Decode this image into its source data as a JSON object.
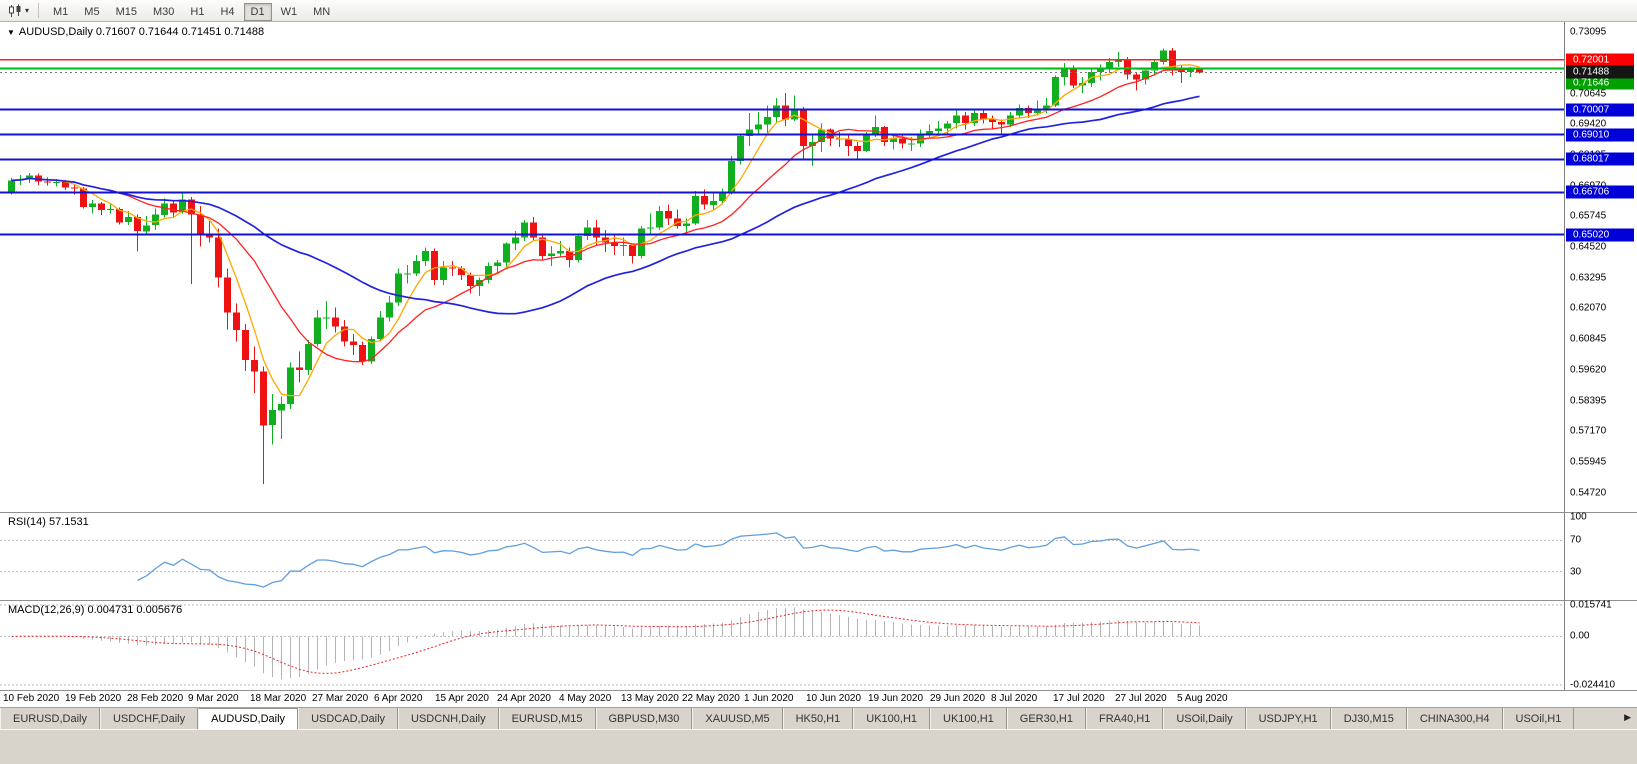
{
  "icons": {
    "caret_down": "▾",
    "one_click": "▼",
    "tab_scroll_right": "▶",
    "chart_type": "candlestick-chart"
  },
  "toolbar": {
    "timeframes": [
      "M1",
      "M5",
      "M15",
      "M30",
      "H1",
      "H4",
      "D1",
      "W1",
      "MN"
    ],
    "active_timeframe": "D1"
  },
  "chart_data": {
    "type": "candlestick",
    "symbol": "AUDUSD",
    "period": "Daily",
    "ohlc_title": "AUDUSD,Daily 0.71607 0.71644 0.71451 0.71488",
    "open": "0.71607",
    "high": "0.71644",
    "low": "0.71451",
    "close": "0.71488",
    "ylim": [
      0.5395,
      0.735
    ],
    "colors": {
      "bull": "#0faf20",
      "bear": "#ef1212",
      "background": "#ffffff"
    },
    "moving_averages": [
      {
        "name": "fast-ma",
        "period": 5,
        "color": "#ffa800",
        "width": 1.3
      },
      {
        "name": "medium-ma",
        "period": 13,
        "color": "#ff2222",
        "width": 1.3
      },
      {
        "name": "slow-ma",
        "period": 34,
        "color": "#2222dd",
        "width": 1.7
      }
    ],
    "levels": [
      {
        "price": 0.72001,
        "label": "0.72001",
        "color": "#ff2020",
        "width": 1.5,
        "label_bg": "#ff0000"
      },
      {
        "price": 0.71646,
        "label": "0.71646",
        "color": "#00b818",
        "width": 2,
        "label_bg": "#00a000",
        "label_dy": 15
      },
      {
        "price": 0.70007,
        "label": "0.70007",
        "color": "#1212d0",
        "width": 2,
        "label_bg": "#0000d8"
      },
      {
        "price": 0.6901,
        "label": "0.69010",
        "color": "#1212d0",
        "width": 2,
        "label_bg": "#0000d8"
      },
      {
        "price": 0.68017,
        "label": "0.68017",
        "color": "#1212d0",
        "width": 2,
        "label_bg": "#0000d8"
      },
      {
        "price": 0.66706,
        "label": "0.66706",
        "color": "#1212d0",
        "width": 2,
        "label_bg": "#0000d8"
      },
      {
        "price": 0.6502,
        "label": "0.65020",
        "color": "#1212d0",
        "width": 2,
        "label_bg": "#0000d8"
      }
    ],
    "current_price": {
      "price": 0.71488,
      "value": "0.71488",
      "label_bg": "#151515",
      "line_color": "#777777"
    },
    "price_axis_ticks": [
      "0.73095",
      "0.71870",
      "0.70645",
      "0.69420",
      "0.68195",
      "0.66970",
      "0.65745",
      "0.64520",
      "0.63295",
      "0.62070",
      "0.60845",
      "0.59620",
      "0.58395",
      "0.57170",
      "0.55945",
      "0.54720"
    ],
    "date_labels": [
      "10 Feb 2020",
      "19 Feb 2020",
      "28 Feb 2020",
      "9 Mar 2020",
      "18 Mar 2020",
      "27 Mar 2020",
      "6 Apr 2020",
      "15 Apr 2020",
      "24 Apr 2020",
      "4 May 2020",
      "13 May 2020",
      "22 May 2020",
      "1 Jun 2020",
      "10 Jun 2020",
      "19 Jun 2020",
      "29 Jun 2020",
      "8 Jul 2020",
      "17 Jul 2020",
      "27 Jul 2020",
      "5 Aug 2020"
    ],
    "rsi": {
      "label": "RSI(14) 57.1531",
      "period": 14,
      "current": "57.1531",
      "line_color": "#5f9fdf",
      "levels": [
        {
          "value": 100,
          "label": "100",
          "dashed": false
        },
        {
          "value": 70,
          "label": "70",
          "dashed": true
        },
        {
          "value": 30,
          "label": "30",
          "dashed": true
        }
      ]
    },
    "macd": {
      "label": "MACD(12,26,9) 0.004731 0.005676",
      "fast": 12,
      "slow": 26,
      "signal": 9,
      "macd_current": "0.004731",
      "signal_current": "0.005676",
      "scale_max": 0.015741,
      "scale_min": -0.02441,
      "histogram_color": "#b4b4b4",
      "signal_color": "#ee2222",
      "axis": [
        {
          "value": 0.015741,
          "label": "0.015741"
        },
        {
          "value": 0,
          "label": "0.00"
        },
        {
          "value": -0.02441,
          "label": "-0.024410"
        }
      ]
    },
    "ohlc": [
      [
        0.6672,
        0.6727,
        0.6662,
        0.6718
      ],
      [
        0.6718,
        0.674,
        0.67,
        0.6722
      ],
      [
        0.6722,
        0.6748,
        0.6708,
        0.6738
      ],
      [
        0.6738,
        0.6746,
        0.67,
        0.6714
      ],
      [
        0.6714,
        0.673,
        0.6698,
        0.671
      ],
      [
        0.671,
        0.6724,
        0.6694,
        0.6712
      ],
      [
        0.6712,
        0.672,
        0.668,
        0.669
      ],
      [
        0.669,
        0.6702,
        0.6662,
        0.6686
      ],
      [
        0.6686,
        0.6691,
        0.6605,
        0.6612
      ],
      [
        0.6612,
        0.664,
        0.6585,
        0.6626
      ],
      [
        0.6626,
        0.6632,
        0.658,
        0.66
      ],
      [
        0.66,
        0.6626,
        0.6585,
        0.6604
      ],
      [
        0.6604,
        0.661,
        0.6542,
        0.6551
      ],
      [
        0.6551,
        0.6596,
        0.654,
        0.6571
      ],
      [
        0.6571,
        0.6582,
        0.6434,
        0.6515
      ],
      [
        0.6515,
        0.6576,
        0.6505,
        0.6539
      ],
      [
        0.6539,
        0.6606,
        0.652,
        0.6581
      ],
      [
        0.6581,
        0.6646,
        0.657,
        0.6626
      ],
      [
        0.6626,
        0.6636,
        0.657,
        0.6591
      ],
      [
        0.6591,
        0.667,
        0.6586,
        0.6641
      ],
      [
        0.6641,
        0.6651,
        0.6305,
        0.6581
      ],
      [
        0.6581,
        0.6616,
        0.6455,
        0.6501
      ],
      [
        0.6501,
        0.6556,
        0.647,
        0.6491
      ],
      [
        0.6491,
        0.6526,
        0.629,
        0.6331
      ],
      [
        0.6331,
        0.6366,
        0.6124,
        0.6191
      ],
      [
        0.6191,
        0.6226,
        0.6076,
        0.6121
      ],
      [
        0.6121,
        0.6146,
        0.5958,
        0.6001
      ],
      [
        0.6001,
        0.6056,
        0.587,
        0.5956
      ],
      [
        0.5956,
        0.5976,
        0.5506,
        0.5741
      ],
      [
        0.5741,
        0.5866,
        0.5664,
        0.5801
      ],
      [
        0.5801,
        0.5856,
        0.5686,
        0.5826
      ],
      [
        0.5826,
        0.5991,
        0.5806,
        0.5971
      ],
      [
        0.5971,
        0.6036,
        0.5911,
        0.5961
      ],
      [
        0.5961,
        0.6081,
        0.5941,
        0.6066
      ],
      [
        0.6066,
        0.6201,
        0.6056,
        0.6171
      ],
      [
        0.6171,
        0.6236,
        0.6126,
        0.6171
      ],
      [
        0.6171,
        0.6211,
        0.6111,
        0.6136
      ],
      [
        0.6136,
        0.6161,
        0.6056,
        0.6076
      ],
      [
        0.6076,
        0.6106,
        0.6021,
        0.6061
      ],
      [
        0.6061,
        0.6076,
        0.5981,
        0.5996
      ],
      [
        0.5996,
        0.6096,
        0.5986,
        0.6086
      ],
      [
        0.6086,
        0.6196,
        0.6076,
        0.6171
      ],
      [
        0.6171,
        0.6256,
        0.6156,
        0.6231
      ],
      [
        0.6231,
        0.6366,
        0.6216,
        0.6346
      ],
      [
        0.6346,
        0.6381,
        0.6306,
        0.6346
      ],
      [
        0.6346,
        0.6421,
        0.6336,
        0.6396
      ],
      [
        0.6396,
        0.6451,
        0.6376,
        0.6436
      ],
      [
        0.6436,
        0.6446,
        0.6301,
        0.6321
      ],
      [
        0.6321,
        0.6396,
        0.6301,
        0.6371
      ],
      [
        0.6371,
        0.6396,
        0.6336,
        0.6366
      ],
      [
        0.6366,
        0.6376,
        0.6321,
        0.6341
      ],
      [
        0.6341,
        0.6351,
        0.6266,
        0.6296
      ],
      [
        0.6296,
        0.6331,
        0.6256,
        0.6321
      ],
      [
        0.6321,
        0.6391,
        0.6306,
        0.6376
      ],
      [
        0.6376,
        0.6401,
        0.6351,
        0.6391
      ],
      [
        0.6391,
        0.6471,
        0.6371,
        0.6466
      ],
      [
        0.6466,
        0.6516,
        0.6441,
        0.6491
      ],
      [
        0.6491,
        0.6561,
        0.6476,
        0.6551
      ],
      [
        0.6551,
        0.6571,
        0.6476,
        0.6491
      ],
      [
        0.6491,
        0.6506,
        0.6401,
        0.6416
      ],
      [
        0.6416,
        0.6456,
        0.6376,
        0.6426
      ],
      [
        0.6426,
        0.6476,
        0.6411,
        0.6436
      ],
      [
        0.6436,
        0.6451,
        0.6371,
        0.6401
      ],
      [
        0.6401,
        0.6501,
        0.6391,
        0.6496
      ],
      [
        0.6496,
        0.6561,
        0.6481,
        0.6531
      ],
      [
        0.6531,
        0.6561,
        0.6461,
        0.6491
      ],
      [
        0.6491,
        0.6521,
        0.6432,
        0.6471
      ],
      [
        0.6471,
        0.6506,
        0.6421,
        0.6456
      ],
      [
        0.6456,
        0.6491,
        0.6416,
        0.6461
      ],
      [
        0.6461,
        0.6466,
        0.6386,
        0.6416
      ],
      [
        0.6416,
        0.6536,
        0.6406,
        0.6526
      ],
      [
        0.6526,
        0.6586,
        0.6506,
        0.6531
      ],
      [
        0.6531,
        0.6616,
        0.6521,
        0.6596
      ],
      [
        0.6596,
        0.6621,
        0.6541,
        0.6566
      ],
      [
        0.6566,
        0.6601,
        0.6526,
        0.6536
      ],
      [
        0.6536,
        0.6566,
        0.6506,
        0.6546
      ],
      [
        0.6546,
        0.6676,
        0.6541,
        0.6656
      ],
      [
        0.6656,
        0.6681,
        0.6601,
        0.6621
      ],
      [
        0.6621,
        0.6666,
        0.6601,
        0.6636
      ],
      [
        0.6636,
        0.6686,
        0.6621,
        0.6666
      ],
      [
        0.6666,
        0.6816,
        0.6661,
        0.6796
      ],
      [
        0.6796,
        0.6901,
        0.6781,
        0.6896
      ],
      [
        0.6896,
        0.6986,
        0.6856,
        0.6921
      ],
      [
        0.6921,
        0.6991,
        0.6906,
        0.6941
      ],
      [
        0.6941,
        0.7016,
        0.6901,
        0.6971
      ],
      [
        0.6971,
        0.7046,
        0.6946,
        0.7016
      ],
      [
        0.7016,
        0.7066,
        0.6936,
        0.6961
      ],
      [
        0.6961,
        0.7056,
        0.6956,
        0.7001
      ],
      [
        0.7001,
        0.7011,
        0.6801,
        0.6856
      ],
      [
        0.6856,
        0.6906,
        0.6776,
        0.6871
      ],
      [
        0.6871,
        0.6946,
        0.6831,
        0.6921
      ],
      [
        0.6921,
        0.6926,
        0.6856,
        0.6886
      ],
      [
        0.6886,
        0.6911,
        0.6851,
        0.6881
      ],
      [
        0.6881,
        0.6906,
        0.6816,
        0.6856
      ],
      [
        0.6856,
        0.6871,
        0.6806,
        0.6836
      ],
      [
        0.6836,
        0.6911,
        0.6831,
        0.6906
      ],
      [
        0.6906,
        0.6976,
        0.6891,
        0.6931
      ],
      [
        0.6931,
        0.6936,
        0.6856,
        0.6871
      ],
      [
        0.6871,
        0.6906,
        0.6841,
        0.6886
      ],
      [
        0.6886,
        0.6901,
        0.6846,
        0.6866
      ],
      [
        0.6866,
        0.6891,
        0.6836,
        0.6866
      ],
      [
        0.6866,
        0.6921,
        0.6851,
        0.6906
      ],
      [
        0.6906,
        0.6941,
        0.6891,
        0.6916
      ],
      [
        0.6916,
        0.6956,
        0.6901,
        0.6926
      ],
      [
        0.6926,
        0.6956,
        0.6901,
        0.6946
      ],
      [
        0.6946,
        0.7001,
        0.6926,
        0.6976
      ],
      [
        0.6976,
        0.6991,
        0.6921,
        0.6946
      ],
      [
        0.6946,
        0.6996,
        0.6936,
        0.6986
      ],
      [
        0.6986,
        0.7001,
        0.6946,
        0.6961
      ],
      [
        0.6961,
        0.6976,
        0.6921,
        0.6951
      ],
      [
        0.6951,
        0.6961,
        0.6906,
        0.6941
      ],
      [
        0.6941,
        0.6991,
        0.6931,
        0.6976
      ],
      [
        0.6976,
        0.7021,
        0.6966,
        0.7006
      ],
      [
        0.7006,
        0.7016,
        0.6966,
        0.6986
      ],
      [
        0.6986,
        0.7036,
        0.6976,
        0.6996
      ],
      [
        0.6996,
        0.7046,
        0.6986,
        0.7016
      ],
      [
        0.7016,
        0.7136,
        0.7011,
        0.7131
      ],
      [
        0.7131,
        0.7186,
        0.7096,
        0.7161
      ],
      [
        0.7161,
        0.7176,
        0.7086,
        0.7096
      ],
      [
        0.7096,
        0.7131,
        0.7066,
        0.7106
      ],
      [
        0.7106,
        0.7166,
        0.7091,
        0.7151
      ],
      [
        0.7151,
        0.7181,
        0.7116,
        0.7161
      ],
      [
        0.7161,
        0.7206,
        0.7146,
        0.7191
      ],
      [
        0.7191,
        0.7231,
        0.7171,
        0.7196
      ],
      [
        0.7196,
        0.7211,
        0.7121,
        0.7141
      ],
      [
        0.7141,
        0.7151,
        0.7076,
        0.7121
      ],
      [
        0.7121,
        0.7161,
        0.7101,
        0.7156
      ],
      [
        0.7156,
        0.7196,
        0.7136,
        0.7191
      ],
      [
        0.7191,
        0.7245,
        0.7181,
        0.7236
      ],
      [
        0.7236,
        0.7246,
        0.7136,
        0.7156
      ],
      [
        0.7156,
        0.7176,
        0.7106,
        0.7151
      ],
      [
        0.7151,
        0.7171,
        0.7131,
        0.7161
      ],
      [
        0.71607,
        0.71644,
        0.71451,
        0.71488
      ]
    ]
  },
  "tabs": {
    "active_index": 2,
    "items": [
      {
        "label": "EURUSD,Daily"
      },
      {
        "label": "USDCHF,Daily"
      },
      {
        "label": "AUDUSD,Daily"
      },
      {
        "label": "USDCAD,Daily"
      },
      {
        "label": "USDCNH,Daily"
      },
      {
        "label": "EURUSD,M15"
      },
      {
        "label": "GBPUSD,M30"
      },
      {
        "label": "XAUUSD,M5"
      },
      {
        "label": "HK50,H1"
      },
      {
        "label": "UK100,H1"
      },
      {
        "label": "UK100,H1"
      },
      {
        "label": "GER30,H1"
      },
      {
        "label": "FRA40,H1"
      },
      {
        "label": "USOil,Daily"
      },
      {
        "label": "USDJPY,H1"
      },
      {
        "label": "DJ30,M15"
      },
      {
        "label": "CHINA300,H4"
      },
      {
        "label": "USOil,H1"
      }
    ]
  }
}
